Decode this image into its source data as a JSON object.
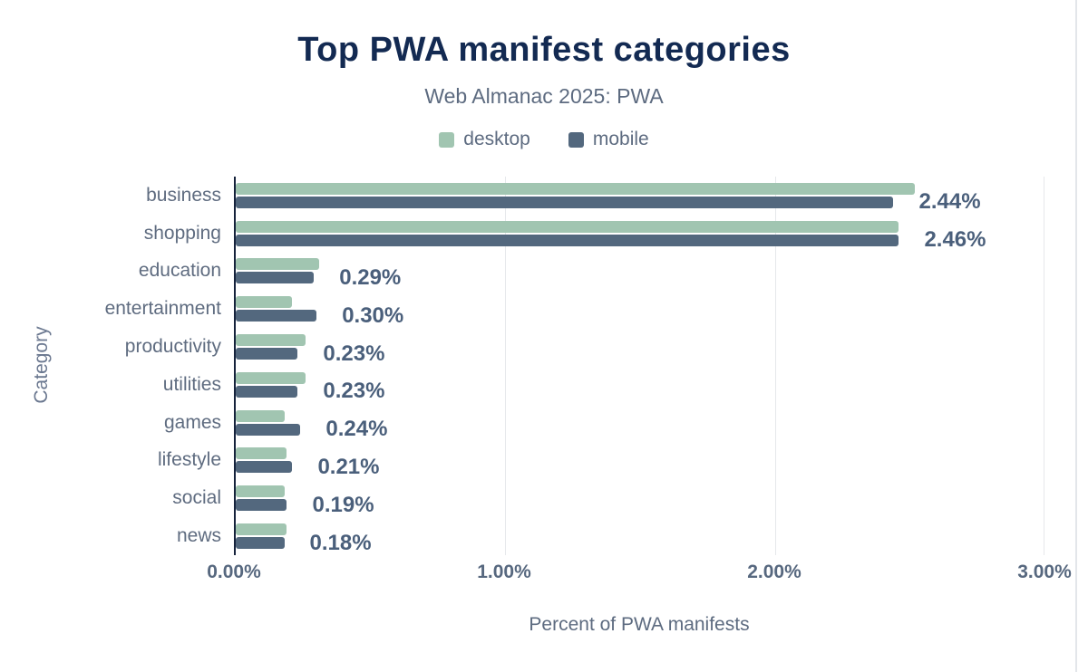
{
  "chart": {
    "title": "Top PWA manifest categories",
    "subtitle": "Web Almanac 2025: PWA",
    "xlabel": "Percent of PWA manifests",
    "ylabel": "Category"
  },
  "legend": [
    {
      "label": "desktop",
      "color": "#a1c5b1"
    },
    {
      "label": "mobile",
      "color": "#53687e"
    }
  ],
  "chart_data": {
    "type": "bar",
    "orientation": "horizontal",
    "title": "Top PWA manifest categories",
    "subtitle": "Web Almanac 2025: PWA",
    "xlabel": "Percent of PWA manifests",
    "ylabel": "Category",
    "categories": [
      "business",
      "shopping",
      "education",
      "entertainment",
      "productivity",
      "utilities",
      "games",
      "lifestyle",
      "social",
      "news"
    ],
    "series": [
      {
        "name": "desktop",
        "color": "#a1c5b1",
        "values": [
          2.52,
          2.46,
          0.31,
          0.21,
          0.26,
          0.26,
          0.18,
          0.19,
          0.18,
          0.19
        ]
      },
      {
        "name": "mobile",
        "color": "#53687e",
        "values": [
          2.44,
          2.46,
          0.29,
          0.3,
          0.23,
          0.23,
          0.24,
          0.21,
          0.19,
          0.18
        ]
      }
    ],
    "value_labels": [
      "2.44%",
      "2.46%",
      "0.29%",
      "0.30%",
      "0.23%",
      "0.23%",
      "0.24%",
      "0.21%",
      "0.19%",
      "0.18%"
    ],
    "xlim": [
      0,
      3
    ],
    "xticks": [
      "0.00%",
      "1.00%",
      "2.00%",
      "3.00%"
    ],
    "xtick_positions": [
      0,
      33.333,
      66.667,
      100
    ],
    "grid": "vertical",
    "legend_position": "top"
  }
}
